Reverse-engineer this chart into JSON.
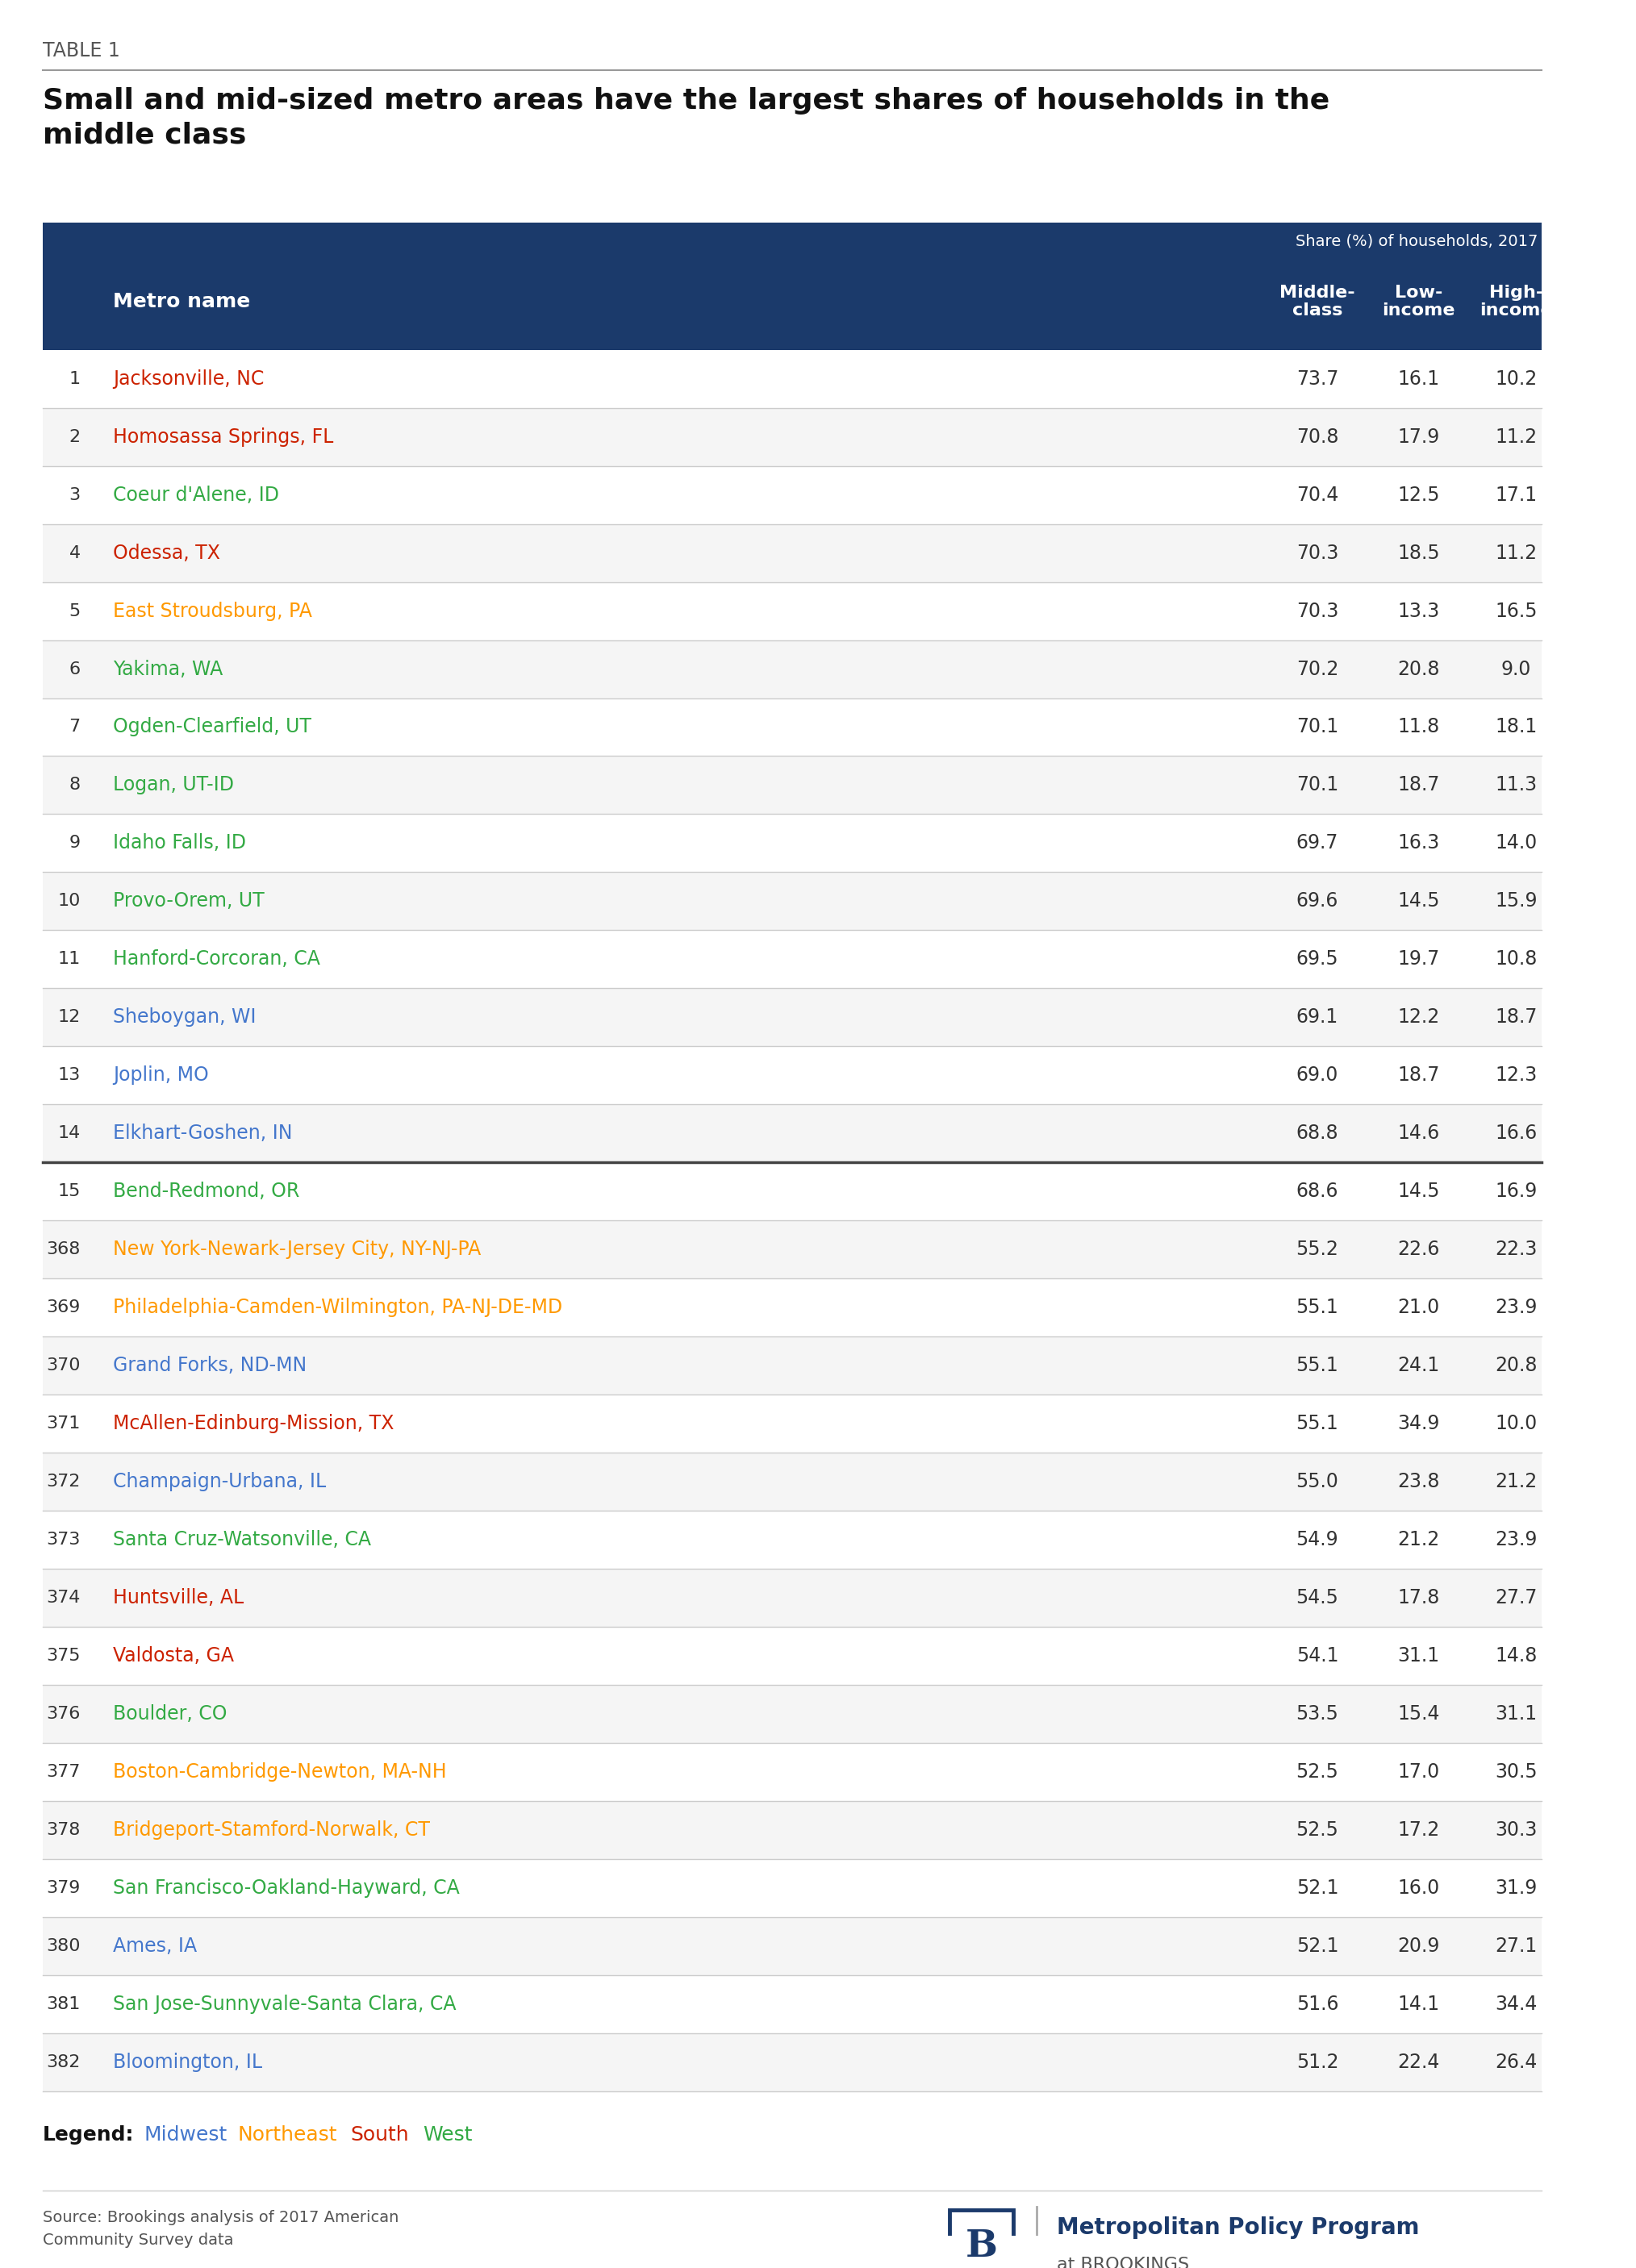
{
  "table_label": "TABLE 1",
  "title": "Small and mid-sized metro areas have the largest shares of households in the\nmiddle class",
  "header_bg": "#1B3A6B",
  "header_text_color": "#FFFFFF",
  "subheader_text": "Share (%) of households, 2017",
  "col_headers": [
    "Metro name",
    "Middle-\nclass",
    "Low-\nincome",
    "High-\nincome"
  ],
  "separator_after_row": 15,
  "rows": [
    {
      "rank": 1,
      "name": "Jacksonville, NC",
      "middle": "73.7",
      "low": "16.1",
      "high": "10.2",
      "color": "#CC2200"
    },
    {
      "rank": 2,
      "name": "Homosassa Springs, FL",
      "middle": "70.8",
      "low": "17.9",
      "high": "11.2",
      "color": "#CC2200"
    },
    {
      "rank": 3,
      "name": "Coeur d'Alene, ID",
      "middle": "70.4",
      "low": "12.5",
      "high": "17.1",
      "color": "#33AA44"
    },
    {
      "rank": 4,
      "name": "Odessa, TX",
      "middle": "70.3",
      "low": "18.5",
      "high": "11.2",
      "color": "#CC2200"
    },
    {
      "rank": 5,
      "name": "East Stroudsburg, PA",
      "middle": "70.3",
      "low": "13.3",
      "high": "16.5",
      "color": "#FF9900"
    },
    {
      "rank": 6,
      "name": "Yakima, WA",
      "middle": "70.2",
      "low": "20.8",
      "high": "9.0",
      "color": "#33AA44"
    },
    {
      "rank": 7,
      "name": "Ogden-Clearfield, UT",
      "middle": "70.1",
      "low": "11.8",
      "high": "18.1",
      "color": "#33AA44"
    },
    {
      "rank": 8,
      "name": "Logan, UT-ID",
      "middle": "70.1",
      "low": "18.7",
      "high": "11.3",
      "color": "#33AA44"
    },
    {
      "rank": 9,
      "name": "Idaho Falls, ID",
      "middle": "69.7",
      "low": "16.3",
      "high": "14.0",
      "color": "#33AA44"
    },
    {
      "rank": 10,
      "name": "Provo-Orem, UT",
      "middle": "69.6",
      "low": "14.5",
      "high": "15.9",
      "color": "#33AA44"
    },
    {
      "rank": 11,
      "name": "Hanford-Corcoran, CA",
      "middle": "69.5",
      "low": "19.7",
      "high": "10.8",
      "color": "#33AA44"
    },
    {
      "rank": 12,
      "name": "Sheboygan, WI",
      "middle": "69.1",
      "low": "12.2",
      "high": "18.7",
      "color": "#4477CC"
    },
    {
      "rank": 13,
      "name": "Joplin, MO",
      "middle": "69.0",
      "low": "18.7",
      "high": "12.3",
      "color": "#4477CC"
    },
    {
      "rank": 14,
      "name": "Elkhart-Goshen, IN",
      "middle": "68.8",
      "low": "14.6",
      "high": "16.6",
      "color": "#4477CC"
    },
    {
      "rank": 15,
      "name": "Bend-Redmond, OR",
      "middle": "68.6",
      "low": "14.5",
      "high": "16.9",
      "color": "#33AA44"
    },
    {
      "rank": 368,
      "name": "New York-Newark-Jersey City, NY-NJ-PA",
      "middle": "55.2",
      "low": "22.6",
      "high": "22.3",
      "color": "#FF9900"
    },
    {
      "rank": 369,
      "name": "Philadelphia-Camden-Wilmington, PA-NJ-DE-MD",
      "middle": "55.1",
      "low": "21.0",
      "high": "23.9",
      "color": "#FF9900"
    },
    {
      "rank": 370,
      "name": "Grand Forks, ND-MN",
      "middle": "55.1",
      "low": "24.1",
      "high": "20.8",
      "color": "#4477CC"
    },
    {
      "rank": 371,
      "name": "McAllen-Edinburg-Mission, TX",
      "middle": "55.1",
      "low": "34.9",
      "high": "10.0",
      "color": "#CC2200"
    },
    {
      "rank": 372,
      "name": "Champaign-Urbana, IL",
      "middle": "55.0",
      "low": "23.8",
      "high": "21.2",
      "color": "#4477CC"
    },
    {
      "rank": 373,
      "name": "Santa Cruz-Watsonville, CA",
      "middle": "54.9",
      "low": "21.2",
      "high": "23.9",
      "color": "#33AA44"
    },
    {
      "rank": 374,
      "name": "Huntsville, AL",
      "middle": "54.5",
      "low": "17.8",
      "high": "27.7",
      "color": "#CC2200"
    },
    {
      "rank": 375,
      "name": "Valdosta, GA",
      "middle": "54.1",
      "low": "31.1",
      "high": "14.8",
      "color": "#CC2200"
    },
    {
      "rank": 376,
      "name": "Boulder, CO",
      "middle": "53.5",
      "low": "15.4",
      "high": "31.1",
      "color": "#33AA44"
    },
    {
      "rank": 377,
      "name": "Boston-Cambridge-Newton, MA-NH",
      "middle": "52.5",
      "low": "17.0",
      "high": "30.5",
      "color": "#FF9900"
    },
    {
      "rank": 378,
      "name": "Bridgeport-Stamford-Norwalk, CT",
      "middle": "52.5",
      "low": "17.2",
      "high": "30.3",
      "color": "#FF9900"
    },
    {
      "rank": 379,
      "name": "San Francisco-Oakland-Hayward, CA",
      "middle": "52.1",
      "low": "16.0",
      "high": "31.9",
      "color": "#33AA44"
    },
    {
      "rank": 380,
      "name": "Ames, IA",
      "middle": "52.1",
      "low": "20.9",
      "high": "27.1",
      "color": "#4477CC"
    },
    {
      "rank": 381,
      "name": "San Jose-Sunnyvale-Santa Clara, CA",
      "middle": "51.6",
      "low": "14.1",
      "high": "34.4",
      "color": "#33AA44"
    },
    {
      "rank": 382,
      "name": "Bloomington, IL",
      "middle": "51.2",
      "low": "22.4",
      "high": "26.4",
      "color": "#4477CC"
    }
  ],
  "legend": {
    "label": "Legend:",
    "items": [
      {
        "text": "Midwest",
        "color": "#4477CC"
      },
      {
        "text": "Northeast",
        "color": "#FF9900"
      },
      {
        "text": "South",
        "color": "#CC2200"
      },
      {
        "text": "West",
        "color": "#33AA44"
      }
    ]
  },
  "source_text": "Source: Brookings analysis of 2017 American\nCommunity Survey data",
  "bg_color": "#FFFFFF",
  "divider_color": "#CCCCCC",
  "thick_divider_color": "#444444",
  "number_color": "#333333",
  "data_color": "#333333"
}
